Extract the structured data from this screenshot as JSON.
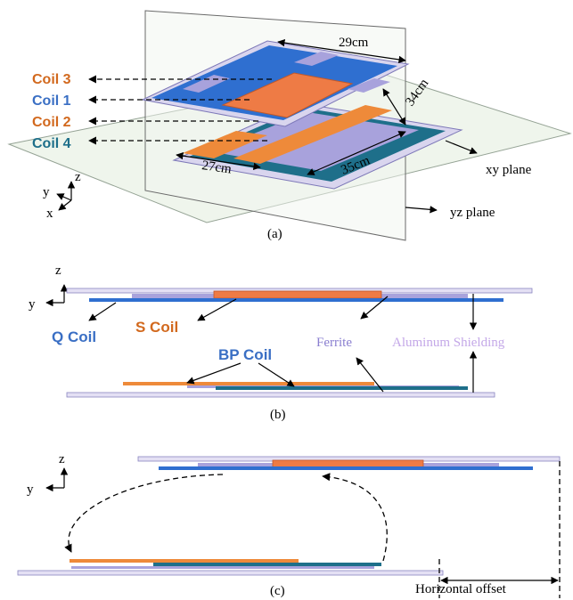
{
  "panel_a": {
    "caption": "(a)",
    "coil_labels": [
      "Coil 3",
      "Coil 1",
      "Coil 2",
      "Coil 4"
    ],
    "dimensions": [
      "29cm",
      "34cm",
      "35cm",
      "27cm"
    ],
    "planes": [
      "xy plane",
      "yz plane"
    ],
    "axes": [
      "z",
      "y",
      "x"
    ]
  },
  "panel_b": {
    "caption": "(b)",
    "axes": [
      "z",
      "y"
    ],
    "labels": [
      "Q Coil",
      "S Coil",
      "Ferrite",
      "Aluminum Shielding",
      "BP Coil"
    ]
  },
  "panel_c": {
    "caption": "(c)",
    "axes": [
      "z",
      "y"
    ],
    "offset_label": "Horizontal offset"
  }
}
